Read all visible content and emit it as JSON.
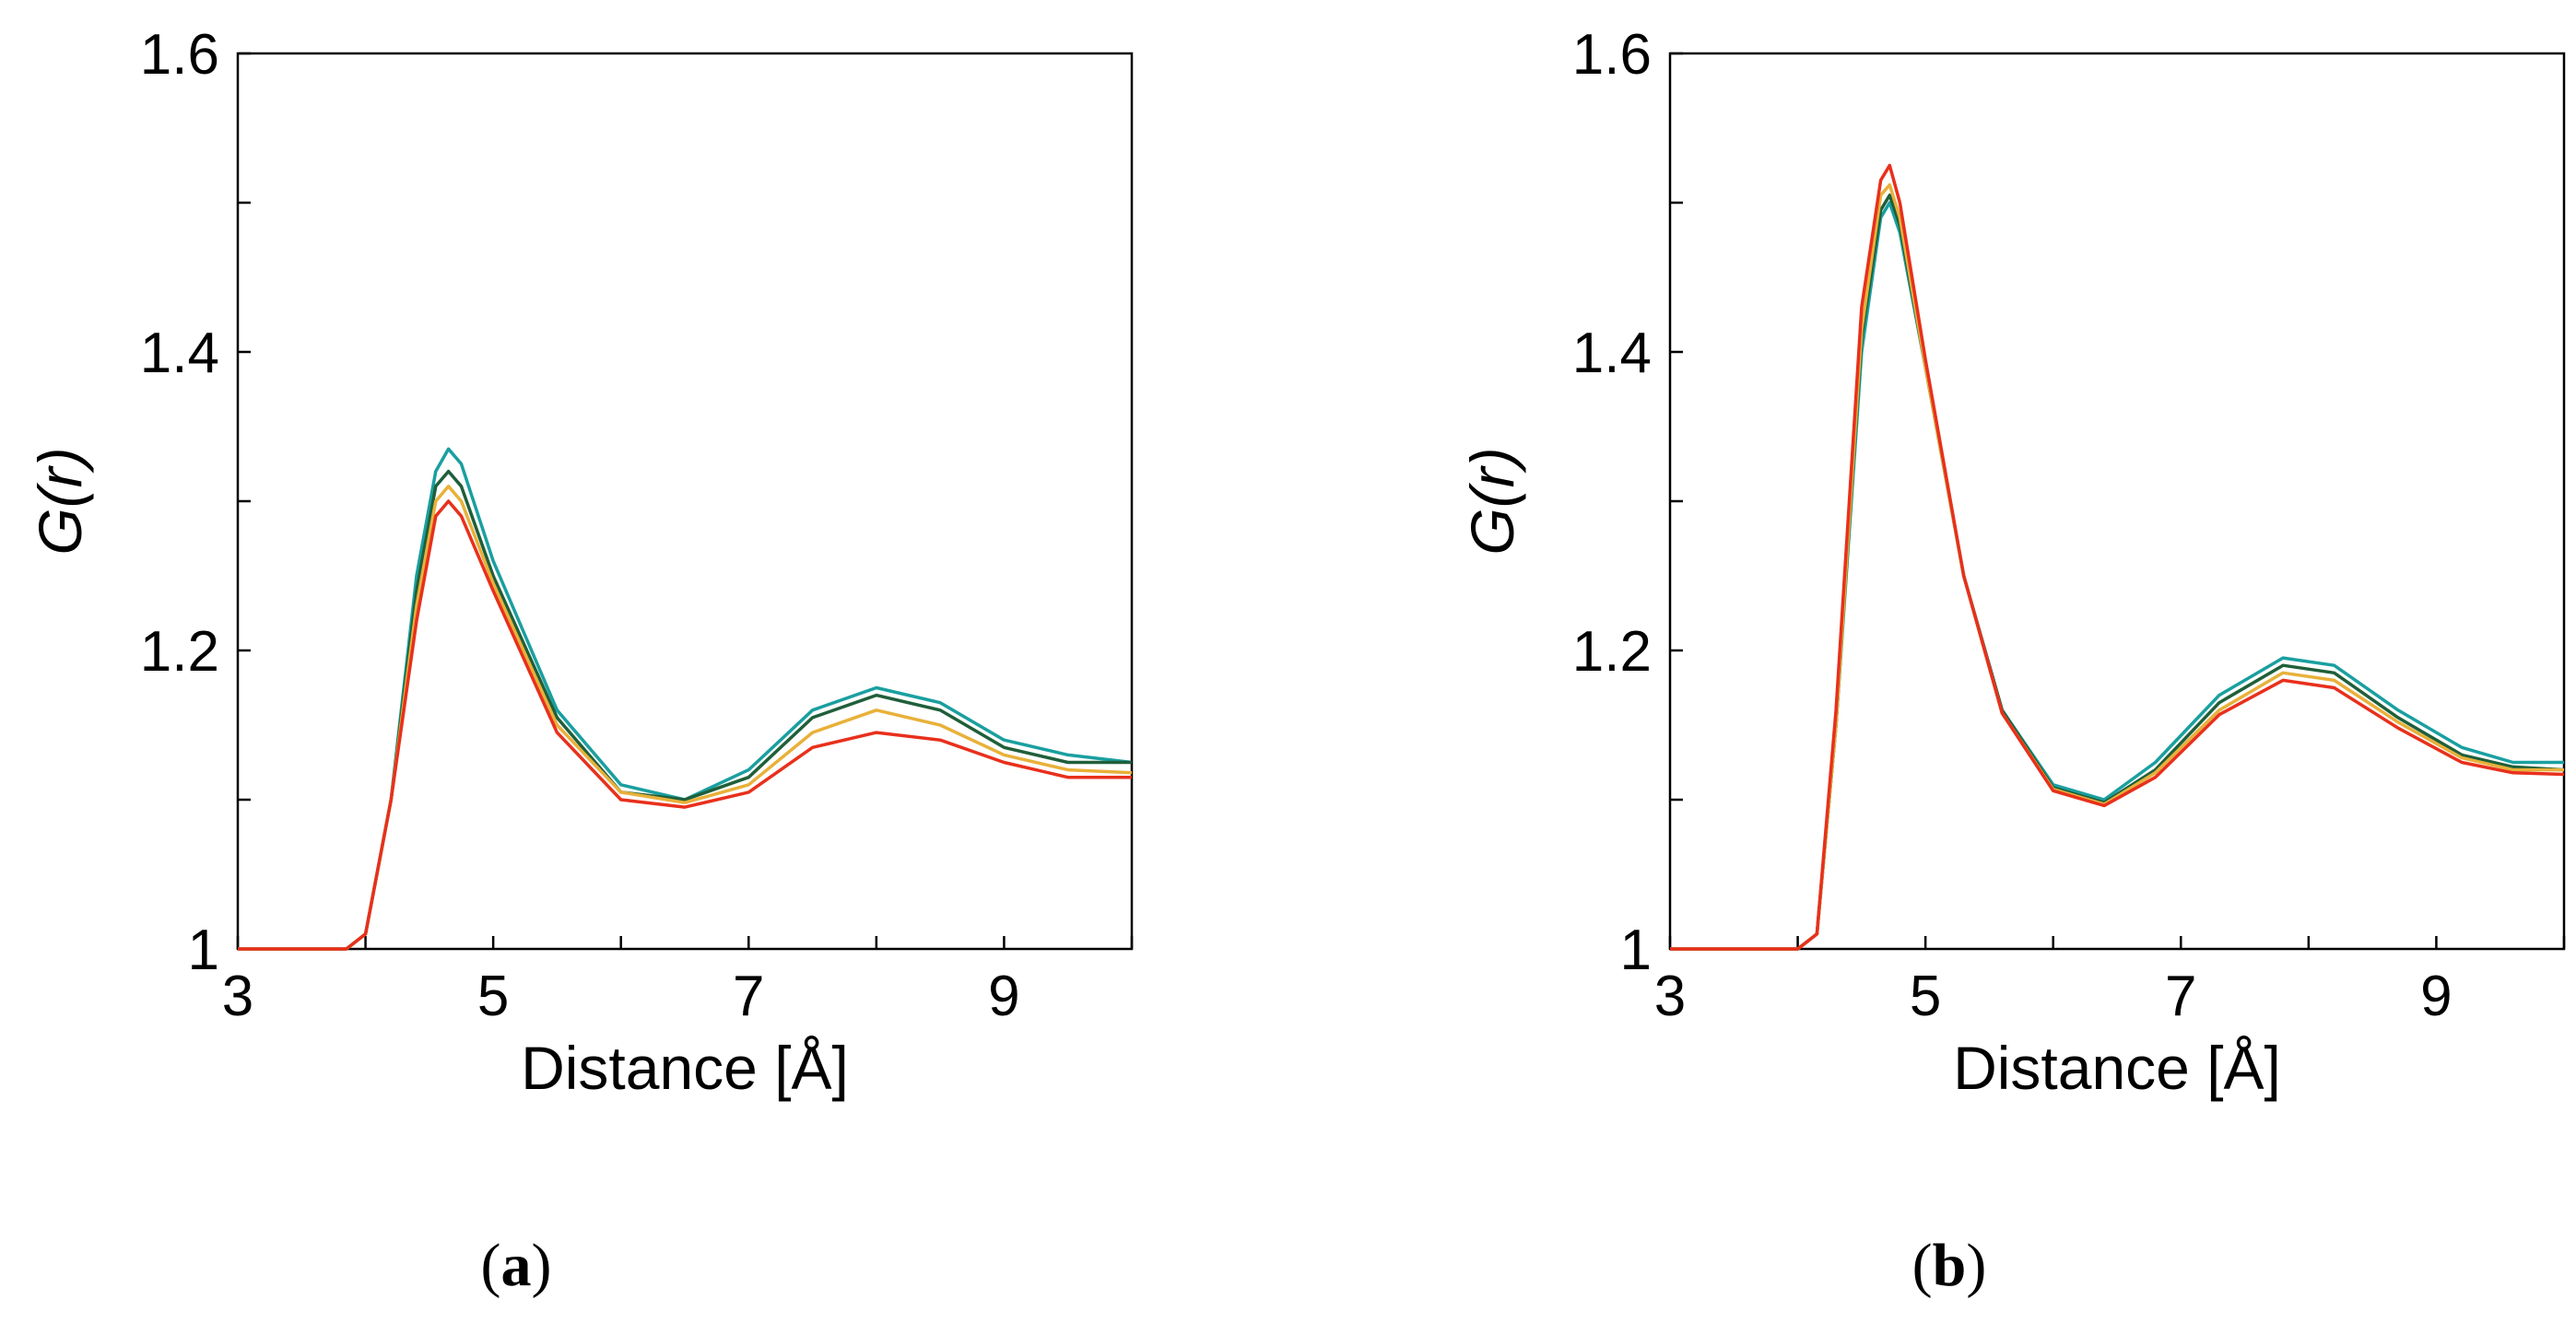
{
  "chart_data": [
    {
      "panel_label": "a",
      "type": "line",
      "xlabel": "Distance [Å]",
      "ylabel_italic": "G(r)",
      "xlim": [
        3,
        10
      ],
      "ylim": [
        1.0,
        1.6
      ],
      "x_ticks": [
        3,
        4,
        5,
        6,
        7,
        8,
        9,
        10
      ],
      "x_tick_labels": [
        "3",
        "",
        "5",
        "",
        "7",
        "",
        "9",
        ""
      ],
      "y_ticks": [
        1.0,
        1.1,
        1.2,
        1.3,
        1.4,
        1.5,
        1.6
      ],
      "y_tick_labels": [
        "1",
        "",
        "1.2",
        "",
        "1.4",
        "",
        "1.6"
      ],
      "grid": false,
      "series": [
        {
          "color": "#1a9fa0",
          "points": [
            [
              3,
              1.0
            ],
            [
              3.5,
              1.0
            ],
            [
              3.85,
              1.0
            ],
            [
              4.0,
              1.01
            ],
            [
              4.2,
              1.1
            ],
            [
              4.4,
              1.25
            ],
            [
              4.55,
              1.32
            ],
            [
              4.65,
              1.335
            ],
            [
              4.75,
              1.325
            ],
            [
              5.0,
              1.26
            ],
            [
              5.5,
              1.16
            ],
            [
              6.0,
              1.11
            ],
            [
              6.5,
              1.1
            ],
            [
              7.0,
              1.12
            ],
            [
              7.5,
              1.16
            ],
            [
              8.0,
              1.175
            ],
            [
              8.5,
              1.165
            ],
            [
              9.0,
              1.14
            ],
            [
              9.5,
              1.13
            ],
            [
              10.0,
              1.125
            ]
          ]
        },
        {
          "color": "#1f5f3a",
          "points": [
            [
              3,
              1.0
            ],
            [
              3.5,
              1.0
            ],
            [
              3.85,
              1.0
            ],
            [
              4.0,
              1.01
            ],
            [
              4.2,
              1.1
            ],
            [
              4.4,
              1.24
            ],
            [
              4.55,
              1.31
            ],
            [
              4.65,
              1.32
            ],
            [
              4.75,
              1.31
            ],
            [
              5.0,
              1.25
            ],
            [
              5.5,
              1.155
            ],
            [
              6.0,
              1.105
            ],
            [
              6.5,
              1.1
            ],
            [
              7.0,
              1.115
            ],
            [
              7.5,
              1.155
            ],
            [
              8.0,
              1.17
            ],
            [
              8.5,
              1.16
            ],
            [
              9.0,
              1.135
            ],
            [
              9.5,
              1.125
            ],
            [
              10.0,
              1.125
            ]
          ]
        },
        {
          "color": "#e8b13a",
          "points": [
            [
              3,
              1.0
            ],
            [
              3.5,
              1.0
            ],
            [
              3.85,
              1.0
            ],
            [
              4.0,
              1.01
            ],
            [
              4.2,
              1.1
            ],
            [
              4.4,
              1.23
            ],
            [
              4.55,
              1.3
            ],
            [
              4.65,
              1.31
            ],
            [
              4.75,
              1.3
            ],
            [
              5.0,
              1.245
            ],
            [
              5.5,
              1.15
            ],
            [
              6.0,
              1.105
            ],
            [
              6.5,
              1.098
            ],
            [
              7.0,
              1.11
            ],
            [
              7.5,
              1.145
            ],
            [
              8.0,
              1.16
            ],
            [
              8.5,
              1.15
            ],
            [
              9.0,
              1.13
            ],
            [
              9.5,
              1.12
            ],
            [
              10.0,
              1.118
            ]
          ]
        },
        {
          "color": "#e8301c",
          "points": [
            [
              3,
              1.0
            ],
            [
              3.5,
              1.0
            ],
            [
              3.85,
              1.0
            ],
            [
              4.0,
              1.01
            ],
            [
              4.2,
              1.1
            ],
            [
              4.4,
              1.22
            ],
            [
              4.55,
              1.29
            ],
            [
              4.65,
              1.3
            ],
            [
              4.75,
              1.29
            ],
            [
              5.0,
              1.24
            ],
            [
              5.5,
              1.145
            ],
            [
              6.0,
              1.1
            ],
            [
              6.5,
              1.095
            ],
            [
              7.0,
              1.105
            ],
            [
              7.5,
              1.135
            ],
            [
              8.0,
              1.145
            ],
            [
              8.5,
              1.14
            ],
            [
              9.0,
              1.125
            ],
            [
              9.5,
              1.115
            ],
            [
              10.0,
              1.115
            ]
          ]
        }
      ]
    },
    {
      "panel_label": "b",
      "type": "line",
      "xlabel": "Distance [Å]",
      "ylabel_italic": "G(r)",
      "xlim": [
        3,
        10
      ],
      "ylim": [
        1.0,
        1.6
      ],
      "x_ticks": [
        3,
        4,
        5,
        6,
        7,
        8,
        9,
        10
      ],
      "x_tick_labels": [
        "3",
        "",
        "5",
        "",
        "7",
        "",
        "9",
        ""
      ],
      "y_ticks": [
        1.0,
        1.1,
        1.2,
        1.3,
        1.4,
        1.5,
        1.6
      ],
      "y_tick_labels": [
        "1",
        "",
        "1.2",
        "",
        "1.4",
        "",
        "1.6"
      ],
      "grid": false,
      "series": [
        {
          "color": "#1a9fa0",
          "points": [
            [
              3,
              1.0
            ],
            [
              3.5,
              1.0
            ],
            [
              4.0,
              1.0
            ],
            [
              4.15,
              1.01
            ],
            [
              4.3,
              1.15
            ],
            [
              4.5,
              1.4
            ],
            [
              4.65,
              1.49
            ],
            [
              4.72,
              1.5
            ],
            [
              4.8,
              1.48
            ],
            [
              5.0,
              1.39
            ],
            [
              5.3,
              1.25
            ],
            [
              5.6,
              1.16
            ],
            [
              6.0,
              1.11
            ],
            [
              6.4,
              1.1
            ],
            [
              6.8,
              1.125
            ],
            [
              7.3,
              1.17
            ],
            [
              7.8,
              1.195
            ],
            [
              8.2,
              1.19
            ],
            [
              8.7,
              1.16
            ],
            [
              9.2,
              1.135
            ],
            [
              9.6,
              1.125
            ],
            [
              10.0,
              1.125
            ]
          ]
        },
        {
          "color": "#1f5f3a",
          "points": [
            [
              3,
              1.0
            ],
            [
              3.5,
              1.0
            ],
            [
              4.0,
              1.0
            ],
            [
              4.15,
              1.01
            ],
            [
              4.3,
              1.15
            ],
            [
              4.5,
              1.41
            ],
            [
              4.65,
              1.495
            ],
            [
              4.72,
              1.505
            ],
            [
              4.8,
              1.485
            ],
            [
              5.0,
              1.39
            ],
            [
              5.3,
              1.25
            ],
            [
              5.6,
              1.16
            ],
            [
              6.0,
              1.108
            ],
            [
              6.4,
              1.098
            ],
            [
              6.8,
              1.12
            ],
            [
              7.3,
              1.165
            ],
            [
              7.8,
              1.19
            ],
            [
              8.2,
              1.185
            ],
            [
              8.7,
              1.155
            ],
            [
              9.2,
              1.13
            ],
            [
              9.6,
              1.122
            ],
            [
              10.0,
              1.12
            ]
          ]
        },
        {
          "color": "#e8b13a",
          "points": [
            [
              3,
              1.0
            ],
            [
              3.5,
              1.0
            ],
            [
              4.0,
              1.0
            ],
            [
              4.15,
              1.01
            ],
            [
              4.3,
              1.15
            ],
            [
              4.5,
              1.415
            ],
            [
              4.65,
              1.505
            ],
            [
              4.72,
              1.512
            ],
            [
              4.8,
              1.49
            ],
            [
              5.0,
              1.39
            ],
            [
              5.3,
              1.25
            ],
            [
              5.6,
              1.158
            ],
            [
              6.0,
              1.107
            ],
            [
              6.4,
              1.097
            ],
            [
              6.8,
              1.118
            ],
            [
              7.3,
              1.16
            ],
            [
              7.8,
              1.185
            ],
            [
              8.2,
              1.18
            ],
            [
              8.7,
              1.152
            ],
            [
              9.2,
              1.128
            ],
            [
              9.6,
              1.12
            ],
            [
              10.0,
              1.12
            ]
          ]
        },
        {
          "color": "#e8301c",
          "points": [
            [
              3,
              1.0
            ],
            [
              3.5,
              1.0
            ],
            [
              4.0,
              1.0
            ],
            [
              4.15,
              1.01
            ],
            [
              4.3,
              1.16
            ],
            [
              4.5,
              1.43
            ],
            [
              4.65,
              1.515
            ],
            [
              4.72,
              1.525
            ],
            [
              4.8,
              1.5
            ],
            [
              5.0,
              1.395
            ],
            [
              5.3,
              1.25
            ],
            [
              5.6,
              1.158
            ],
            [
              6.0,
              1.106
            ],
            [
              6.4,
              1.096
            ],
            [
              6.8,
              1.115
            ],
            [
              7.3,
              1.157
            ],
            [
              7.8,
              1.18
            ],
            [
              8.2,
              1.175
            ],
            [
              8.7,
              1.148
            ],
            [
              9.2,
              1.125
            ],
            [
              9.6,
              1.118
            ],
            [
              10.0,
              1.117
            ]
          ]
        }
      ]
    }
  ]
}
